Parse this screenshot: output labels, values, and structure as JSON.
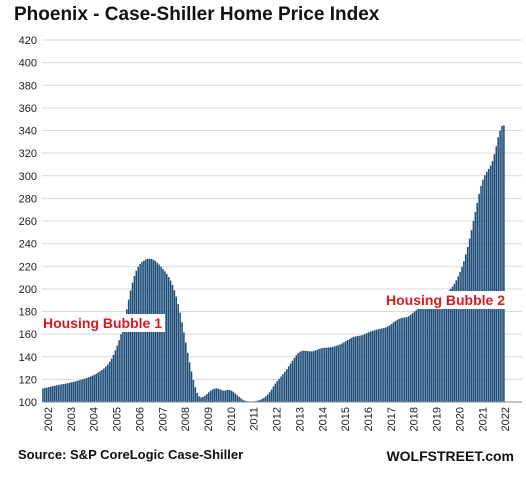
{
  "chart_data": {
    "type": "bar",
    "title": "Phoenix - Case-Shiller Home Price Index",
    "xlabel": "",
    "ylabel": "",
    "ylim": [
      100,
      420
    ],
    "yticks": [
      100,
      120,
      140,
      160,
      180,
      200,
      220,
      240,
      260,
      280,
      300,
      320,
      340,
      360,
      380,
      400,
      420
    ],
    "grid": true,
    "bar_color": "#1f4e79",
    "x_start": "2002-01",
    "frequency": "monthly",
    "year_labels": [
      "2002",
      "2003",
      "2004",
      "2005",
      "2006",
      "2007",
      "2008",
      "2009",
      "2010",
      "2011",
      "2012",
      "2013",
      "2014",
      "2015",
      "2016",
      "2017",
      "2018",
      "2019",
      "2020",
      "2021",
      "2022"
    ],
    "values": [
      111.9,
      112.4,
      112.8,
      113.1,
      113.6,
      113.9,
      114.3,
      114.6,
      115.0,
      115.4,
      115.7,
      116.0,
      116.3,
      116.6,
      117.0,
      117.4,
      117.8,
      118.2,
      118.7,
      119.2,
      119.7,
      120.2,
      120.7,
      121.3,
      121.9,
      122.6,
      123.3,
      124.1,
      125.0,
      126.0,
      127.1,
      128.3,
      129.7,
      131.3,
      133.2,
      135.6,
      138.4,
      141.7,
      145.5,
      149.8,
      154.6,
      160.0,
      166.5,
      174.0,
      182.0,
      190.5,
      198.5,
      205.5,
      211.5,
      216.0,
      219.5,
      222.0,
      223.8,
      225.0,
      226.0,
      226.5,
      226.7,
      226.5,
      225.8,
      224.7,
      223.2,
      221.5,
      219.6,
      217.6,
      215.5,
      213.2,
      210.5,
      207.3,
      203.5,
      198.8,
      193.2,
      186.6,
      179.0,
      170.5,
      161.5,
      152.5,
      143.5,
      135.0,
      127.0,
      119.5,
      113.0,
      108.0,
      105.0,
      104.0,
      104.5,
      105.5,
      107.0,
      108.5,
      110.0,
      111.0,
      111.8,
      112.1,
      111.8,
      111.2,
      110.5,
      110.0,
      110.3,
      110.7,
      110.6,
      110.0,
      109.0,
      107.5,
      106.0,
      104.5,
      103.2,
      102.0,
      101.2,
      100.7,
      100.5,
      100.4,
      100.5,
      100.6,
      100.9,
      101.3,
      101.9,
      102.7,
      103.7,
      105.0,
      106.6,
      108.6,
      111.0,
      113.7,
      116.3,
      118.5,
      120.5,
      122.5,
      124.5,
      126.7,
      129.0,
      131.5,
      134.0,
      136.5,
      139.0,
      141.3,
      143.2,
      144.5,
      145.2,
      145.4,
      145.3,
      145.0,
      144.8,
      144.8,
      145.0,
      145.5,
      146.2,
      146.9,
      147.4,
      147.8,
      148.0,
      148.1,
      148.2,
      148.4,
      148.7,
      149.1,
      149.6,
      150.2,
      150.9,
      151.8,
      152.8,
      153.8,
      154.8,
      155.8,
      156.7,
      157.4,
      157.9,
      158.2,
      158.5,
      158.8,
      159.3,
      160.0,
      160.8,
      161.6,
      162.3,
      162.9,
      163.4,
      163.9,
      164.3,
      164.7,
      165.0,
      165.4,
      166.0,
      166.8,
      167.8,
      169.0,
      170.3,
      171.5,
      172.6,
      173.5,
      174.1,
      174.5,
      174.8,
      175.0,
      175.8,
      177.0,
      178.5,
      180.0,
      181.2,
      182.2,
      183.0,
      183.7,
      184.3,
      184.9,
      185.6,
      186.4,
      187.4,
      188.5,
      189.8,
      191.2,
      192.8,
      194.2,
      195.5,
      196.5,
      197.4,
      198.5,
      200.0,
      202.0,
      204.5,
      207.5,
      211.0,
      215.0,
      219.5,
      224.5,
      230.5,
      237.0,
      244.5,
      252.0,
      260.0,
      268.0,
      276.0,
      284.0,
      291.0,
      296.5,
      300.5,
      303.5,
      306.0,
      309.0,
      313.0,
      319.0,
      326.0,
      334.0,
      340.0,
      344.0,
      344.5
    ],
    "annotations": [
      {
        "text": "Housing Bubble 1"
      },
      {
        "text": "Housing Bubble 2"
      }
    ],
    "source": "Source: S&P CoreLogic Case-Shiller",
    "brand": "WOLFSTREET.com"
  }
}
